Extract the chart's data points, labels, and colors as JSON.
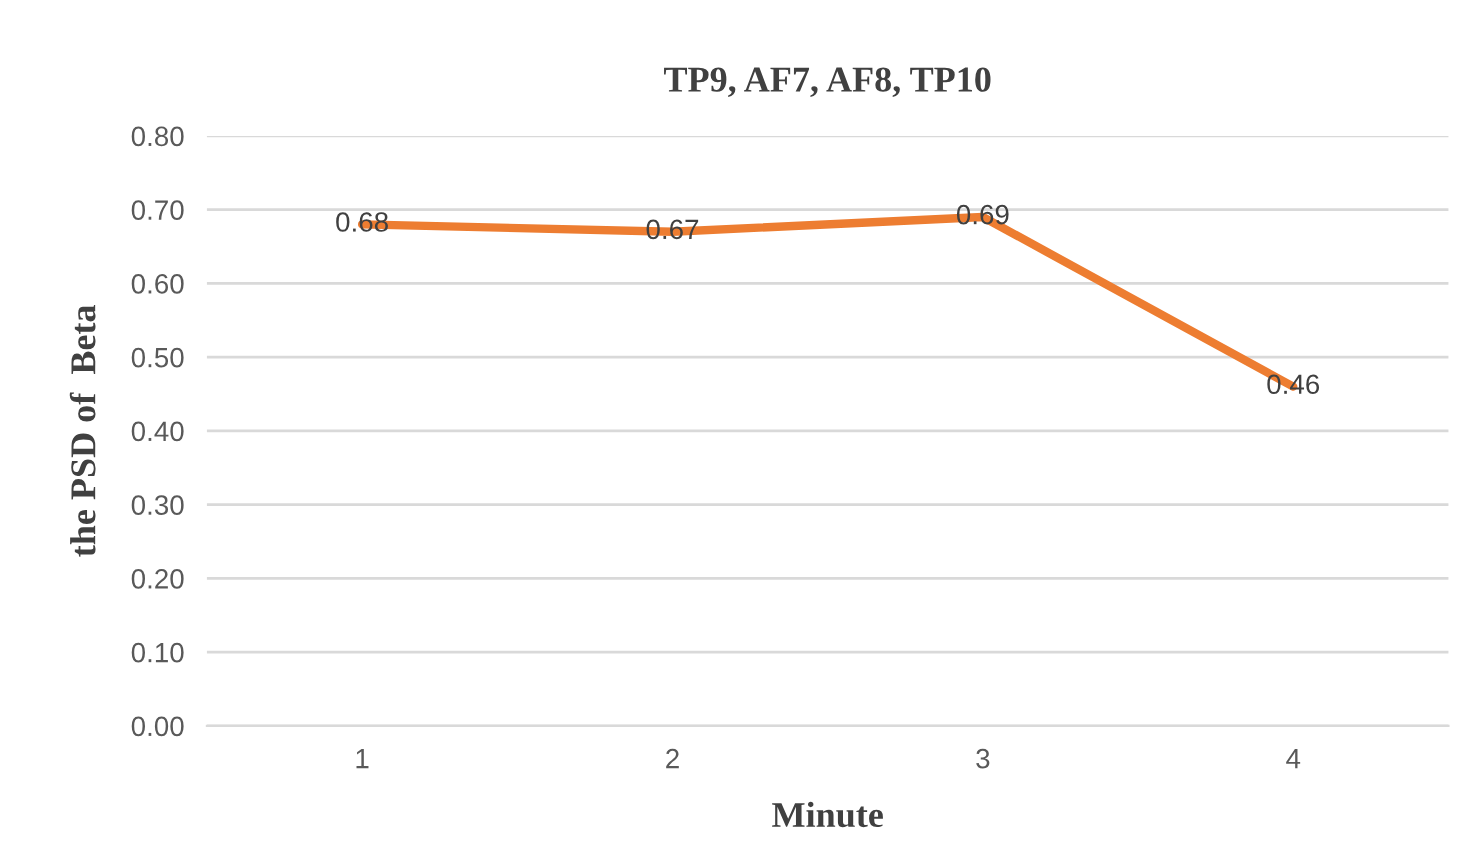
{
  "chart_data": {
    "type": "line",
    "title": "TP9, AF7, AF8, TP10",
    "xlabel": "Minute",
    "ylabel": "the PSD of  Beta",
    "categories": [
      "1",
      "2",
      "3",
      "4"
    ],
    "series": [
      {
        "color": "#ed7d31",
        "values": [
          0.68,
          0.67,
          0.69,
          0.46
        ]
      }
    ],
    "ylim": [
      0,
      0.8
    ],
    "yticks": [
      {
        "value": 0,
        "label": "0.00"
      },
      {
        "value": 0.1,
        "label": "0.10"
      },
      {
        "value": 0.2,
        "label": "0.20"
      },
      {
        "value": 0.3,
        "label": "0.30"
      },
      {
        "value": 0.4,
        "label": "0.40"
      },
      {
        "value": 0.5,
        "label": "0.50"
      },
      {
        "value": 0.6,
        "label": "0.60"
      },
      {
        "value": 0.7,
        "label": "0.70"
      },
      {
        "value": 0.8,
        "label": "0.80"
      }
    ],
    "grid": "y",
    "data_labels": true,
    "marker": "none",
    "line_style": "solid"
  }
}
